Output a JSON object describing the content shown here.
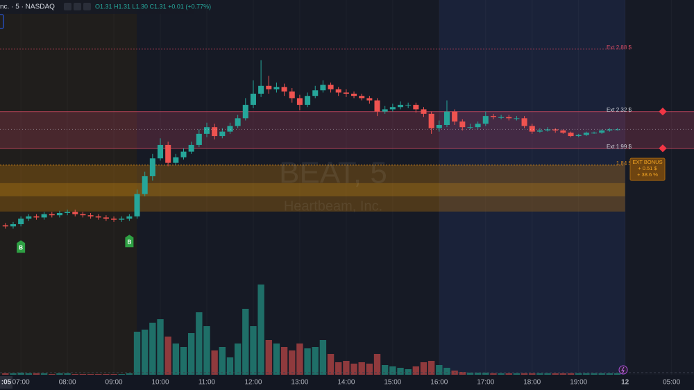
{
  "chart_data": {
    "type": "candlestick",
    "header": {
      "symbol": "nc. · 5 · NASDAQ",
      "ohlc_legend": "O1.31 H1.31 L1.30 C1.31 +0.01 (+0.77%)"
    },
    "watermark": {
      "title": "BEAT, 5",
      "subtitle": "Heartbeam, Inc."
    },
    "x": [
      400,
      410,
      420,
      430,
      440,
      450,
      460,
      470,
      480,
      490,
      500,
      510,
      520,
      530,
      540,
      550,
      560,
      570,
      580,
      590,
      600,
      610,
      620,
      630,
      640,
      650,
      660,
      670,
      680,
      690,
      700,
      710,
      720,
      730,
      740,
      750,
      760,
      770,
      780,
      790,
      800,
      810,
      820,
      830,
      840,
      850,
      860,
      870,
      880,
      890,
      900,
      910,
      920,
      930,
      940,
      950,
      960,
      970,
      980,
      990,
      1000,
      1010,
      1020,
      1030,
      1040,
      1050,
      1060,
      1070,
      1080,
      1090,
      1100,
      1110,
      1120,
      1130,
      1140,
      1150,
      1160,
      1170,
      1180,
      1190
    ],
    "open": [
      1.3,
      1.29,
      1.31,
      1.36,
      1.38,
      1.37,
      1.4,
      1.39,
      1.41,
      1.42,
      1.4,
      1.39,
      1.38,
      1.37,
      1.36,
      1.35,
      1.36,
      1.38,
      1.58,
      1.74,
      1.9,
      2.02,
      1.86,
      1.91,
      1.96,
      2.02,
      2.12,
      2.18,
      2.1,
      2.14,
      2.19,
      2.26,
      2.38,
      2.48,
      2.55,
      2.52,
      2.54,
      2.5,
      2.44,
      2.38,
      2.46,
      2.51,
      2.56,
      2.52,
      2.49,
      2.48,
      2.46,
      2.44,
      2.42,
      2.32,
      2.34,
      2.36,
      2.38,
      2.38,
      2.34,
      2.3,
      2.17,
      2.2,
      2.32,
      2.23,
      2.18,
      2.18,
      2.21,
      2.28,
      2.27,
      2.27,
      2.26,
      2.26,
      2.19,
      2.14,
      2.15,
      2.16,
      2.15,
      2.13,
      2.1,
      2.11,
      2.13,
      2.13,
      2.15,
      2.16
    ],
    "high": [
      1.32,
      1.33,
      1.38,
      1.4,
      1.4,
      1.42,
      1.42,
      1.43,
      1.44,
      1.44,
      1.42,
      1.41,
      1.4,
      1.39,
      1.38,
      1.38,
      1.4,
      1.62,
      1.78,
      1.94,
      2.08,
      2.05,
      1.94,
      1.99,
      2.05,
      2.16,
      2.22,
      2.21,
      2.17,
      2.22,
      2.29,
      2.44,
      2.6,
      2.78,
      2.64,
      2.58,
      2.57,
      2.53,
      2.47,
      2.49,
      2.55,
      2.6,
      2.58,
      2.54,
      2.52,
      2.5,
      2.48,
      2.46,
      2.44,
      2.37,
      2.39,
      2.41,
      2.4,
      2.4,
      2.36,
      2.32,
      2.24,
      2.42,
      2.34,
      2.25,
      2.21,
      2.23,
      2.32,
      2.3,
      2.29,
      2.29,
      2.28,
      2.28,
      2.21,
      2.17,
      2.18,
      2.17,
      2.16,
      2.14,
      2.12,
      2.14,
      2.14,
      2.16,
      2.17,
      2.17
    ],
    "low": [
      1.27,
      1.27,
      1.29,
      1.34,
      1.35,
      1.35,
      1.37,
      1.37,
      1.39,
      1.38,
      1.37,
      1.36,
      1.35,
      1.34,
      1.33,
      1.33,
      1.34,
      1.36,
      1.56,
      1.7,
      1.88,
      1.83,
      1.84,
      1.89,
      1.94,
      2.0,
      2.09,
      2.07,
      2.08,
      2.12,
      2.17,
      2.24,
      2.35,
      2.45,
      2.48,
      2.49,
      2.46,
      2.4,
      2.33,
      2.36,
      2.44,
      2.49,
      2.49,
      2.46,
      2.45,
      2.44,
      2.42,
      2.39,
      2.28,
      2.3,
      2.32,
      2.34,
      2.35,
      2.31,
      2.27,
      2.12,
      2.14,
      2.18,
      2.2,
      2.15,
      2.16,
      2.16,
      2.19,
      2.25,
      2.25,
      2.24,
      2.24,
      2.17,
      2.12,
      2.13,
      2.14,
      2.13,
      2.12,
      2.09,
      2.09,
      2.1,
      2.12,
      2.12,
      2.14,
      2.15
    ],
    "close": [
      1.29,
      1.31,
      1.36,
      1.38,
      1.37,
      1.4,
      1.39,
      1.41,
      1.42,
      1.4,
      1.39,
      1.38,
      1.37,
      1.36,
      1.35,
      1.36,
      1.38,
      1.58,
      1.74,
      1.9,
      2.02,
      1.86,
      1.91,
      1.96,
      2.02,
      2.12,
      2.18,
      2.1,
      2.14,
      2.19,
      2.26,
      2.38,
      2.48,
      2.55,
      2.52,
      2.54,
      2.5,
      2.44,
      2.38,
      2.46,
      2.51,
      2.56,
      2.52,
      2.49,
      2.48,
      2.46,
      2.44,
      2.42,
      2.32,
      2.34,
      2.36,
      2.38,
      2.38,
      2.34,
      2.3,
      2.17,
      2.2,
      2.32,
      2.23,
      2.18,
      2.18,
      2.21,
      2.28,
      2.27,
      2.27,
      2.26,
      2.26,
      2.19,
      2.14,
      2.15,
      2.16,
      2.15,
      2.13,
      2.1,
      2.11,
      2.13,
      2.13,
      2.15,
      2.16,
      2.16
    ],
    "volume": [
      2,
      2,
      3,
      2,
      2,
      2,
      1,
      2,
      2,
      1,
      1,
      1,
      1,
      1,
      1,
      1,
      2,
      62,
      65,
      75,
      80,
      55,
      45,
      40,
      60,
      90,
      70,
      35,
      40,
      25,
      45,
      95,
      70,
      130,
      50,
      45,
      40,
      35,
      45,
      38,
      40,
      50,
      30,
      18,
      20,
      16,
      18,
      16,
      30,
      14,
      12,
      10,
      8,
      12,
      18,
      20,
      14,
      10,
      6,
      4,
      3,
      3,
      3,
      2,
      2,
      2,
      2,
      2,
      2,
      2,
      2,
      2,
      2,
      2,
      2,
      2,
      2,
      2,
      2,
      2
    ],
    "up_color": "#26a69a",
    "down_color": "#ef5350",
    "volume_up_color": "#1f6f68",
    "volume_down_color": "#8f3a3d",
    "xlim": [
      393,
      1289
    ],
    "ylim": [
      -0.04,
      3.32
    ],
    "volume_lim": [
      0,
      150
    ],
    "xticks": [
      {
        "value": 420,
        "label": "07:00"
      },
      {
        "value": 480,
        "label": "08:00"
      },
      {
        "value": 540,
        "label": "09:00"
      },
      {
        "value": 600,
        "label": "10:00"
      },
      {
        "value": 660,
        "label": "11:00"
      },
      {
        "value": 720,
        "label": "12:00"
      },
      {
        "value": 780,
        "label": "13:00"
      },
      {
        "value": 840,
        "label": "14:00"
      },
      {
        "value": 900,
        "label": "15:00"
      },
      {
        "value": 960,
        "label": "16:00"
      },
      {
        "value": 1020,
        "label": "17:00"
      },
      {
        "value": 1080,
        "label": "18:00"
      },
      {
        "value": 1140,
        "label": "19:00"
      },
      {
        "value": 1200,
        "label": "12"
      },
      {
        "value": 1260,
        "label": "05:00"
      }
    ],
    "crosshair_time": ":05",
    "levels": [
      {
        "value": 2.88,
        "label": "Ext 2.88 $",
        "color": "#c2415a"
      },
      {
        "value": 2.32,
        "label": "Ext 2.32 $",
        "color": "#d04a62"
      },
      {
        "value": 1.99,
        "label": "Ext 1.99 $",
        "color": "#d04a62"
      },
      {
        "value": 1.84,
        "label": "1.84 $",
        "color": "#d98a1c"
      }
    ],
    "signals": [
      {
        "x": 420,
        "label": "B"
      },
      {
        "x": 560,
        "label": "B"
      }
    ],
    "bonus": {
      "title": "EXT BONUS",
      "amount": "+ 0.51 $",
      "percent": "+ 38.6 %"
    }
  }
}
